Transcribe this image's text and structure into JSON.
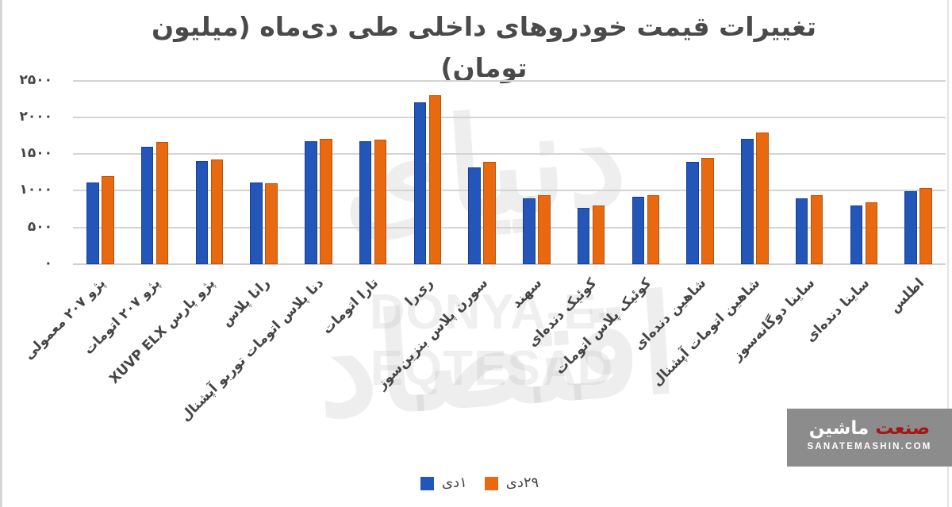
{
  "title": "تغییرات قیمت خودروهای داخلی طی دی‌ماه (میلیون تومان)",
  "watermark": {
    "fa": "دنیای اقتصاد",
    "en": "DONYA-E-EQTESAD"
  },
  "colors": {
    "series_1": "#2356B8",
    "series_2": "#E8690F",
    "grid": "#D4D4D4",
    "text": "#444444",
    "logo_bg": "#8C8C8C",
    "logo_red": "#A31616"
  },
  "y_axis": {
    "ticks": [
      "۰",
      "۵۰۰",
      "۱۰۰۰",
      "۱۵۰۰",
      "۲۰۰۰",
      "۲۵۰۰"
    ]
  },
  "legend": {
    "items": [
      {
        "label": "۱دی",
        "color": "#2356B8"
      },
      {
        "label": "۲۹دی",
        "color": "#E8690F"
      }
    ]
  },
  "logo": {
    "fa_part1": "صنعت",
    "fa_part2": "ماشین",
    "en": "SANATEMASHIN.COM"
  },
  "chart_data": {
    "type": "bar",
    "title": "تغییرات قیمت خودروهای داخلی طی دی‌ماه (میلیون تومان)",
    "xlabel": "",
    "ylabel": "میلیون تومان",
    "ylim": [
      0,
      2500
    ],
    "y_ticks": [
      0,
      500,
      1000,
      1500,
      2000,
      2500
    ],
    "grid": true,
    "legend_position": "bottom",
    "categories": [
      "پژو ۲۰۷ معمولی",
      "پژو ۲۰۷ اتومات",
      "پژو پارس XUVP ELX",
      "رانا پلاس",
      "دنا پلاس اتومات توربو آپشنال",
      "تارا اتومات",
      "ری‌را",
      "سورن پلاس بنزین‌سوز",
      "سهند",
      "کوئیک دنده‌ای",
      "کوئیک پلاس اتومات",
      "شاهین دنده‌ای",
      "شاهین اتومات آپشنال",
      "ساینا دوگانه‌سوز",
      "ساینا دنده‌ای",
      "اطلس"
    ],
    "series": [
      {
        "name": "۱دی",
        "color": "#2356B8",
        "values": [
          1110,
          1600,
          1410,
          1120,
          1680,
          1680,
          2210,
          1320,
          900,
          770,
          920,
          1400,
          1710,
          900,
          800,
          1000
        ]
      },
      {
        "name": "۲۹دی",
        "color": "#E8690F",
        "values": [
          1200,
          1670,
          1430,
          1100,
          1710,
          1700,
          2310,
          1400,
          940,
          800,
          940,
          1450,
          1800,
          940,
          840,
          1040
        ]
      }
    ]
  }
}
